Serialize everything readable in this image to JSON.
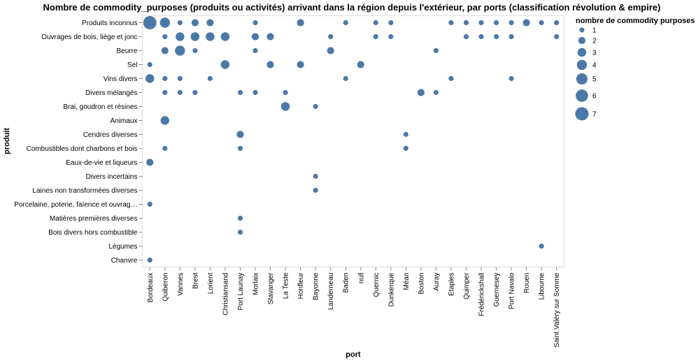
{
  "chart_data": {
    "type": "scatter",
    "title": "Nombre de commodity_purposes (produits ou activités) arrivant dans la région depuis l'extérieur, par ports (classification révolution & empire)",
    "xlabel": "port",
    "ylabel": "produit",
    "x_categories": [
      "Bordeaux",
      "Quiberon",
      "Vannes",
      "Brest",
      "Lorient",
      "Christiansand",
      "Port Launay",
      "Morlaix",
      "Stavanger",
      "La Teste",
      "Honfleur",
      "Bayonne",
      "Landerneau",
      "Baden",
      "null",
      "Quernic",
      "Dunkerque",
      "Méan",
      "Boston",
      "Auray",
      "Etaples",
      "Quimper",
      "Frédérickshall",
      "Guernesey",
      "Port Navalo",
      "Rouen",
      "Libourne",
      "Saint Valéry sur Somme"
    ],
    "y_categories": [
      "Produits inconnus",
      "Ouvrages de bois, liège et jonc",
      "Beurre",
      "Sel",
      "Vins divers",
      "Divers mélangés",
      "Brai, goudron et résines",
      "Animaux",
      "Cendres diverses",
      "Combustibles dont charbons et bois",
      "Eaux-de-vie et liqueurs",
      "Divers incertains",
      "Laines non transformées diverses",
      "Porcelaine, poterie, faïence et ouvrag…",
      "Matières premières diverses",
      "Bois divers hors combustible",
      "Légumes",
      "Chanvre"
    ],
    "size_legend": {
      "title": "nombre de commodity purposes",
      "values": [
        1,
        2,
        3,
        4,
        5,
        6,
        7
      ]
    },
    "color": "#4c78a8",
    "points": [
      {
        "x": "Bordeaux",
        "y": "Produits inconnus",
        "size": 7
      },
      {
        "x": "Quiberon",
        "y": "Produits inconnus",
        "size": 4
      },
      {
        "x": "Vannes",
        "y": "Produits inconnus",
        "size": 1
      },
      {
        "x": "Brest",
        "y": "Produits inconnus",
        "size": 2
      },
      {
        "x": "Lorient",
        "y": "Produits inconnus",
        "size": 2
      },
      {
        "x": "Morlaix",
        "y": "Produits inconnus",
        "size": 1
      },
      {
        "x": "Honfleur",
        "y": "Produits inconnus",
        "size": 2
      },
      {
        "x": "Baden",
        "y": "Produits inconnus",
        "size": 1
      },
      {
        "x": "Quernic",
        "y": "Produits inconnus",
        "size": 1
      },
      {
        "x": "Dunkerque",
        "y": "Produits inconnus",
        "size": 1
      },
      {
        "x": "Etaples",
        "y": "Produits inconnus",
        "size": 1
      },
      {
        "x": "Quimper",
        "y": "Produits inconnus",
        "size": 1
      },
      {
        "x": "Frédérickshall",
        "y": "Produits inconnus",
        "size": 1
      },
      {
        "x": "Guernesey",
        "y": "Produits inconnus",
        "size": 1
      },
      {
        "x": "Port Navalo",
        "y": "Produits inconnus",
        "size": 1
      },
      {
        "x": "Rouen",
        "y": "Produits inconnus",
        "size": 2
      },
      {
        "x": "Libourne",
        "y": "Produits inconnus",
        "size": 1
      },
      {
        "x": "Saint Valéry sur Somme",
        "y": "Produits inconnus",
        "size": 1
      },
      {
        "x": "Quiberon",
        "y": "Ouvrages de bois, liège et jonc",
        "size": 1
      },
      {
        "x": "Vannes",
        "y": "Ouvrages de bois, liège et jonc",
        "size": 3
      },
      {
        "x": "Brest",
        "y": "Ouvrages de bois, liège et jonc",
        "size": 3
      },
      {
        "x": "Lorient",
        "y": "Ouvrages de bois, liège et jonc",
        "size": 3
      },
      {
        "x": "Christiansand",
        "y": "Ouvrages de bois, liège et jonc",
        "size": 3
      },
      {
        "x": "Morlaix",
        "y": "Ouvrages de bois, liège et jonc",
        "size": 2
      },
      {
        "x": "Stavanger",
        "y": "Ouvrages de bois, liège et jonc",
        "size": 2
      },
      {
        "x": "Landerneau",
        "y": "Ouvrages de bois, liège et jonc",
        "size": 1
      },
      {
        "x": "Quernic",
        "y": "Ouvrages de bois, liège et jonc",
        "size": 1
      },
      {
        "x": "Dunkerque",
        "y": "Ouvrages de bois, liège et jonc",
        "size": 1
      },
      {
        "x": "Quimper",
        "y": "Ouvrages de bois, liège et jonc",
        "size": 1
      },
      {
        "x": "Frédérickshall",
        "y": "Ouvrages de bois, liège et jonc",
        "size": 1
      },
      {
        "x": "Guernesey",
        "y": "Ouvrages de bois, liège et jonc",
        "size": 1
      },
      {
        "x": "Port Navalo",
        "y": "Ouvrages de bois, liège et jonc",
        "size": 1
      },
      {
        "x": "Saint Valéry sur Somme",
        "y": "Ouvrages de bois, liège et jonc",
        "size": 1
      },
      {
        "x": "Quiberon",
        "y": "Beurre",
        "size": 2
      },
      {
        "x": "Vannes",
        "y": "Beurre",
        "size": 4
      },
      {
        "x": "Brest",
        "y": "Beurre",
        "size": 1
      },
      {
        "x": "Morlaix",
        "y": "Beurre",
        "size": 1
      },
      {
        "x": "Landerneau",
        "y": "Beurre",
        "size": 2
      },
      {
        "x": "Auray",
        "y": "Beurre",
        "size": 1
      },
      {
        "x": "Bordeaux",
        "y": "Sel",
        "size": 1
      },
      {
        "x": "Christiansand",
        "y": "Sel",
        "size": 3
      },
      {
        "x": "Stavanger",
        "y": "Sel",
        "size": 2
      },
      {
        "x": "Honfleur",
        "y": "Sel",
        "size": 2
      },
      {
        "x": "null",
        "y": "Sel",
        "size": 2
      },
      {
        "x": "Bordeaux",
        "y": "Vins divers",
        "size": 3
      },
      {
        "x": "Quiberon",
        "y": "Vins divers",
        "size": 1
      },
      {
        "x": "Vannes",
        "y": "Vins divers",
        "size": 1
      },
      {
        "x": "Lorient",
        "y": "Vins divers",
        "size": 1
      },
      {
        "x": "Baden",
        "y": "Vins divers",
        "size": 1
      },
      {
        "x": "Etaples",
        "y": "Vins divers",
        "size": 1
      },
      {
        "x": "Port Navalo",
        "y": "Vins divers",
        "size": 1
      },
      {
        "x": "Quiberon",
        "y": "Divers mélangés",
        "size": 1
      },
      {
        "x": "Vannes",
        "y": "Divers mélangés",
        "size": 1
      },
      {
        "x": "Brest",
        "y": "Divers mélangés",
        "size": 1
      },
      {
        "x": "Port Launay",
        "y": "Divers mélangés",
        "size": 1
      },
      {
        "x": "Morlaix",
        "y": "Divers mélangés",
        "size": 1
      },
      {
        "x": "La Teste",
        "y": "Divers mélangés",
        "size": 1
      },
      {
        "x": "Boston",
        "y": "Divers mélangés",
        "size": 2
      },
      {
        "x": "Auray",
        "y": "Divers mélangés",
        "size": 1
      },
      {
        "x": "La Teste",
        "y": "Brai, goudron et résines",
        "size": 3
      },
      {
        "x": "Bayonne",
        "y": "Brai, goudron et résines",
        "size": 1
      },
      {
        "x": "Quiberon",
        "y": "Animaux",
        "size": 3
      },
      {
        "x": "Port Launay",
        "y": "Cendres diverses",
        "size": 2
      },
      {
        "x": "Méan",
        "y": "Cendres diverses",
        "size": 1
      },
      {
        "x": "Quiberon",
        "y": "Combustibles dont charbons et bois",
        "size": 1
      },
      {
        "x": "Port Launay",
        "y": "Combustibles dont charbons et bois",
        "size": 1
      },
      {
        "x": "Méan",
        "y": "Combustibles dont charbons et bois",
        "size": 1
      },
      {
        "x": "Bordeaux",
        "y": "Eaux-de-vie et liqueurs",
        "size": 2
      },
      {
        "x": "Bayonne",
        "y": "Divers incertains",
        "size": 1
      },
      {
        "x": "Bayonne",
        "y": "Laines non transformées diverses",
        "size": 1
      },
      {
        "x": "Bordeaux",
        "y": "Porcelaine, poterie, faïence et ouvrag…",
        "size": 1
      },
      {
        "x": "Port Launay",
        "y": "Matières premières diverses",
        "size": 1
      },
      {
        "x": "Port Launay",
        "y": "Bois divers hors combustible",
        "size": 1
      },
      {
        "x": "Libourne",
        "y": "Légumes",
        "size": 1
      },
      {
        "x": "Bordeaux",
        "y": "Chanvre",
        "size": 1
      }
    ]
  }
}
